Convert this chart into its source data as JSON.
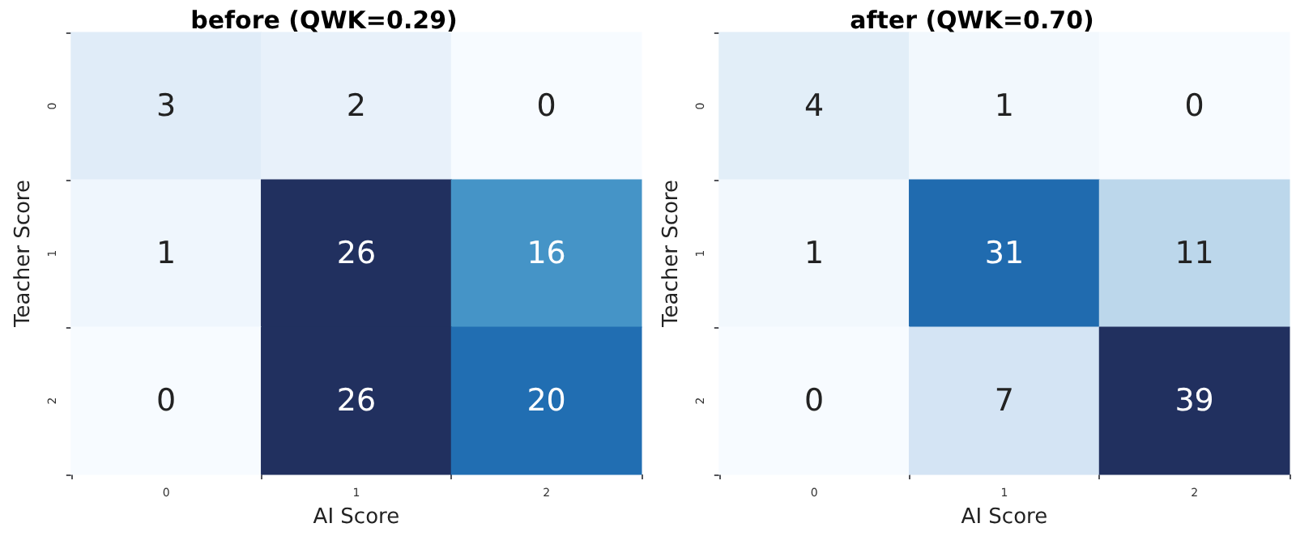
{
  "chart_data": [
    {
      "type": "heatmap",
      "title": "before (QWK=0.29)",
      "xlabel": "AI Score",
      "ylabel": "Teacher Score",
      "categories": [
        "0",
        "1",
        "2"
      ],
      "y_categories": [
        "0",
        "1",
        "2"
      ],
      "cells": [
        [
          3,
          2,
          0
        ],
        [
          1,
          26,
          16
        ],
        [
          0,
          26,
          20
        ]
      ],
      "data_labels": true,
      "colors": [
        "#f7fbff",
        "#deebf7",
        "#c6dbef",
        "#9ecae1",
        "#6baed6",
        "#4292c6",
        "#2171b5",
        "#1f5fa3",
        "#21305f"
      ]
    },
    {
      "type": "heatmap",
      "title": "after (QWK=0.70)",
      "xlabel": "AI Score",
      "ylabel": "Teacher Score",
      "categories": [
        "0",
        "1",
        "2"
      ],
      "y_categories": [
        "0",
        "1",
        "2"
      ],
      "cells": [
        [
          4,
          1,
          0
        ],
        [
          1,
          31,
          11
        ],
        [
          0,
          7,
          39
        ]
      ],
      "data_labels": true,
      "colors": [
        "#f7fbff",
        "#deebf7",
        "#c6dbef",
        "#9ecae1",
        "#6baed6",
        "#4292c6",
        "#2171b5",
        "#1f5fa3",
        "#21305f"
      ]
    }
  ]
}
